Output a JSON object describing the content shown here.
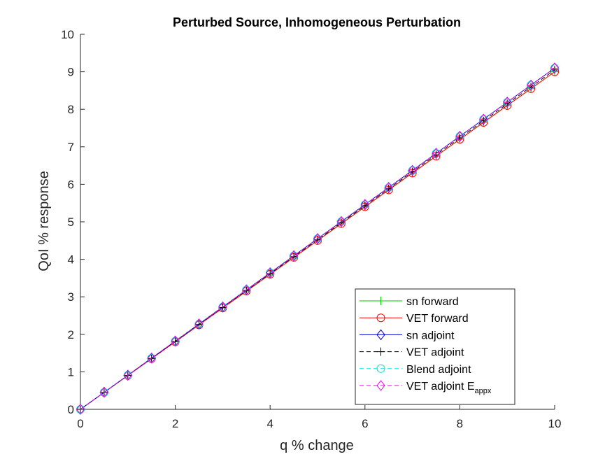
{
  "chart_data": {
    "type": "line",
    "title": "Perturbed Source, Inhomogeneous Perturbation",
    "xlabel": "q % change",
    "ylabel": "QoI % response",
    "xlim": [
      0,
      10
    ],
    "ylim": [
      0,
      10
    ],
    "xticks": [
      "0",
      "2",
      "4",
      "6",
      "8",
      "10"
    ],
    "yticks": [
      "0",
      "1",
      "2",
      "3",
      "4",
      "5",
      "6",
      "7",
      "8",
      "9",
      "10"
    ],
    "grid": false,
    "legend_position": "bottom-right",
    "x": [
      0,
      0.5,
      1,
      1.5,
      2,
      2.5,
      3,
      3.5,
      4,
      4.5,
      5,
      5.5,
      6,
      6.5,
      7,
      7.5,
      8,
      8.5,
      9,
      9.5,
      10
    ],
    "series": [
      {
        "name": "sn forward",
        "color": "#00cc00",
        "dash": "solid",
        "marker": "plus",
        "values": [
          0,
          0.45,
          0.9,
          1.35,
          1.8,
          2.25,
          2.7,
          3.15,
          3.6,
          4.05,
          4.5,
          4.95,
          5.4,
          5.85,
          6.3,
          6.75,
          7.2,
          7.65,
          8.1,
          8.55,
          9.0
        ]
      },
      {
        "name": "VET forward",
        "color": "#ff0000",
        "dash": "solid",
        "marker": "circle",
        "values": [
          0,
          0.45,
          0.9,
          1.35,
          1.8,
          2.25,
          2.7,
          3.15,
          3.6,
          4.05,
          4.5,
          4.95,
          5.4,
          5.85,
          6.3,
          6.75,
          7.2,
          7.65,
          8.1,
          8.55,
          9.0
        ]
      },
      {
        "name": "sn adjoint",
        "color": "#0000cc",
        "dash": "solid",
        "marker": "diamond",
        "values": [
          0,
          0.455,
          0.91,
          1.365,
          1.82,
          2.275,
          2.73,
          3.185,
          3.64,
          4.095,
          4.55,
          5.005,
          5.46,
          5.915,
          6.37,
          6.825,
          7.28,
          7.735,
          8.19,
          8.645,
          9.1
        ]
      },
      {
        "name": "VET adjoint",
        "color": "#000000",
        "dash": "dashed",
        "marker": "plus",
        "values": [
          0,
          0.452,
          0.905,
          1.357,
          1.81,
          2.262,
          2.715,
          3.167,
          3.62,
          4.072,
          4.525,
          4.977,
          5.43,
          5.882,
          6.335,
          6.787,
          7.24,
          7.692,
          8.145,
          8.597,
          9.05
        ]
      },
      {
        "name": "Blend adjoint",
        "color": "#00e5e5",
        "dash": "dashed",
        "marker": "circle",
        "values": [
          0,
          0.455,
          0.91,
          1.365,
          1.82,
          2.275,
          2.73,
          3.185,
          3.64,
          4.095,
          4.55,
          5.005,
          5.46,
          5.915,
          6.37,
          6.825,
          7.28,
          7.735,
          8.19,
          8.645,
          9.1
        ]
      },
      {
        "name": "VET adjoint E",
        "name_subscript": "appx",
        "color": "#e600e6",
        "dash": "dashed",
        "marker": "diamond",
        "values": [
          0,
          0.455,
          0.91,
          1.365,
          1.82,
          2.275,
          2.73,
          3.185,
          3.64,
          4.095,
          4.55,
          5.005,
          5.46,
          5.915,
          6.37,
          6.825,
          7.28,
          7.735,
          8.19,
          8.645,
          9.1
        ]
      }
    ]
  }
}
